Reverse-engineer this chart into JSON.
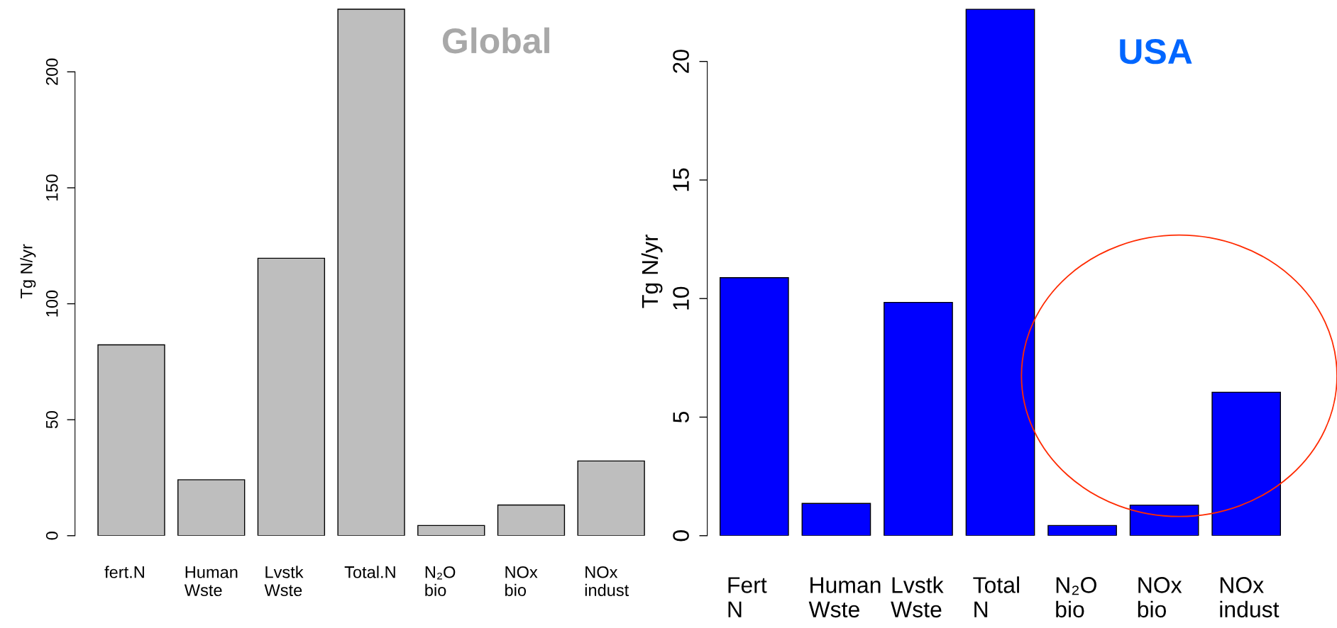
{
  "chart_data": [
    {
      "type": "bar",
      "title": "Global",
      "ylabel": "Tg N/yr",
      "categories": [
        "fert.N",
        "Human\nWste",
        "Lvstk\nWste",
        "Total.N",
        "N₂O\nbio",
        "NOx\nbio",
        "NOx\nindust"
      ],
      "values": [
        82.3,
        24.1,
        119.6,
        227,
        4.4,
        13.2,
        32.2
      ],
      "color": "#bebebe",
      "ylim": [
        0,
        228
      ],
      "yticks": [
        0,
        50,
        100,
        150,
        200
      ],
      "grid": false,
      "legend": false
    },
    {
      "type": "bar",
      "title": "USA",
      "ylabel": "Tg N/yr",
      "categories": [
        "Fert\nN",
        "Human\nWste",
        "Lvstk\nWste",
        "Total\nN",
        "N₂O\nbio",
        "NOx\nbio",
        "NOx\nindust"
      ],
      "values": [
        10.88,
        1.36,
        9.84,
        22.2,
        0.43,
        1.29,
        6.05
      ],
      "color": "#0000ff",
      "ylim": [
        0,
        22.3
      ],
      "yticks": [
        0,
        5,
        10,
        15,
        20
      ],
      "grid": false,
      "legend": false
    }
  ]
}
